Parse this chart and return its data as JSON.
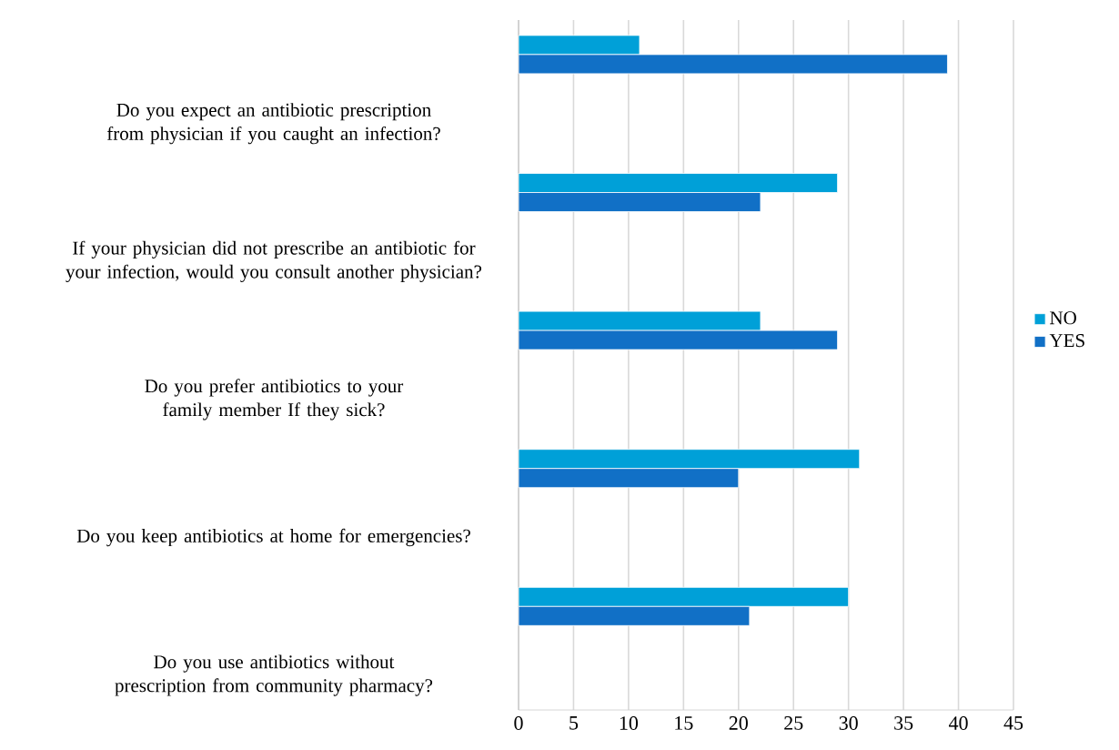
{
  "chart_data": {
    "type": "bar",
    "orientation": "horizontal",
    "categories": [
      null,
      "Do you expect an antibiotic prescription from physician if you caught an infection?",
      null,
      "If your physician did not prescribe an antibiotic for your infection, would you consult another physician?",
      null,
      "Do you prefer antibiotics to your family member If they sick?",
      null,
      "Do you keep antibiotics at home for emergencies?",
      null,
      "Do you use antibiotics without prescription from community pharmacy?"
    ],
    "series": [
      {
        "name": "NO",
        "color": "#00a0d8",
        "values": [
          11,
          null,
          29,
          null,
          22,
          null,
          31,
          null,
          30,
          null
        ]
      },
      {
        "name": "YES",
        "color": "#1170c6",
        "values": [
          39,
          null,
          22,
          null,
          29,
          null,
          20,
          null,
          21,
          null
        ]
      }
    ],
    "xlim": [
      0,
      45
    ],
    "xticks": [
      0,
      5,
      10,
      15,
      20,
      25,
      30,
      35,
      40,
      45
    ],
    "grid": "x",
    "legend": "right"
  }
}
